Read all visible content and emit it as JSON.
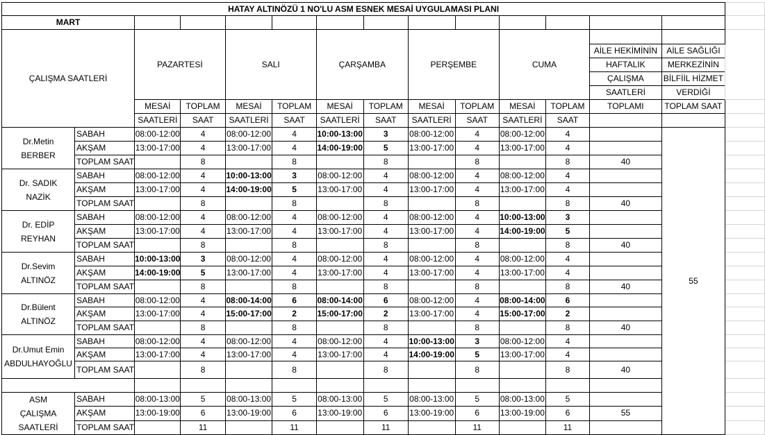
{
  "title": "HATAY ALTINÖZÜ 1 NO'LU ASM ESNEK MESAİ UYGULAMASI PLANI",
  "month": "MART",
  "row_header": "ÇALIŞMA SAATLERİ",
  "days": [
    "PAZARTESİ",
    "SALI",
    "ÇARŞAMBA",
    "PERŞEMBE",
    "CUMA"
  ],
  "sub_headers": {
    "mesai_1": "MESAİ",
    "mesai_2": "SAATLERİ",
    "toplam_1": "TOPLAM",
    "toplam_2": "SAAT"
  },
  "weekly_header": [
    "AİLE HEKİMİNİN",
    "HAFTALIK",
    "ÇALIŞMA",
    "SAATLERİ",
    "TOPLAMI"
  ],
  "asm_header": [
    "AİLE SAĞLIĞI",
    "MERKEZİNİN",
    "BİLFİİL HİZMET",
    "VERDİĞİ",
    "TOPLAM SAAT"
  ],
  "shift_labels": {
    "sabah": "SABAH",
    "aksam": "AKŞAM",
    "total": "TOPLAM SAAT"
  },
  "asm_total_hours": "55",
  "doctors": [
    {
      "name_lines": [
        "Dr.Metin",
        "BERBER"
      ],
      "weekly_total": "40",
      "sabah": [
        {
          "time": "08:00-12:00",
          "hours": "4",
          "bold": false
        },
        {
          "time": "08:00-12:00",
          "hours": "4",
          "bold": false
        },
        {
          "time": "10:00-13:00",
          "hours": "3",
          "bold": true
        },
        {
          "time": "08:00-12:00",
          "hours": "4",
          "bold": false
        },
        {
          "time": "08:00-12:00",
          "hours": "4",
          "bold": false
        }
      ],
      "aksam": [
        {
          "time": "13:00-17:00",
          "hours": "4",
          "bold": false
        },
        {
          "time": "13:00-17:00",
          "hours": "4",
          "bold": false
        },
        {
          "time": "14:00-19:00",
          "hours": "5",
          "bold": true
        },
        {
          "time": "13:00-17:00",
          "hours": "4",
          "bold": false
        },
        {
          "time": "13:00-17:00",
          "hours": "4",
          "bold": false
        }
      ],
      "totals": [
        "8",
        "8",
        "8",
        "8",
        "8"
      ]
    },
    {
      "name_lines": [
        "Dr. SADIK",
        "NAZİK"
      ],
      "weekly_total": "40",
      "sabah": [
        {
          "time": "08:00-12:00",
          "hours": "4",
          "bold": false
        },
        {
          "time": "10:00-13:00",
          "hours": "3",
          "bold": true
        },
        {
          "time": "08:00-12:00",
          "hours": "4",
          "bold": false
        },
        {
          "time": "08:00-12:00",
          "hours": "4",
          "bold": false
        },
        {
          "time": "08:00-12:00",
          "hours": "4",
          "bold": false
        }
      ],
      "aksam": [
        {
          "time": "13:00-17:00",
          "hours": "4",
          "bold": false
        },
        {
          "time": "14:00-19:00",
          "hours": "5",
          "bold": true
        },
        {
          "time": "13:00-17:00",
          "hours": "4",
          "bold": false
        },
        {
          "time": "13:00-17:00",
          "hours": "4",
          "bold": false
        },
        {
          "time": "13:00-17:00",
          "hours": "4",
          "bold": false
        }
      ],
      "totals": [
        "8",
        "8",
        "8",
        "8",
        "8"
      ]
    },
    {
      "name_lines": [
        "Dr. EDİP",
        "REYHAN"
      ],
      "weekly_total": "40",
      "sabah": [
        {
          "time": "08:00-12:00",
          "hours": "4",
          "bold": false
        },
        {
          "time": "08:00-12:00",
          "hours": "4",
          "bold": false
        },
        {
          "time": "08:00-12:00",
          "hours": "4",
          "bold": false
        },
        {
          "time": "08:00-12:00",
          "hours": "4",
          "bold": false
        },
        {
          "time": "10:00-13:00",
          "hours": "3",
          "bold": true
        }
      ],
      "aksam": [
        {
          "time": "13:00-17:00",
          "hours": "4",
          "bold": false
        },
        {
          "time": "13:00-17:00",
          "hours": "4",
          "bold": false
        },
        {
          "time": "13:00-17:00",
          "hours": "4",
          "bold": false
        },
        {
          "time": "13:00-17:00",
          "hours": "4",
          "bold": false
        },
        {
          "time": "14:00-19:00",
          "hours": "5",
          "bold": true
        }
      ],
      "totals": [
        "8",
        "8",
        "8",
        "8",
        "8"
      ]
    },
    {
      "name_lines": [
        "Dr.Sevim",
        "ALTINÖZ"
      ],
      "weekly_total": "40",
      "sabah": [
        {
          "time": "10:00-13:00",
          "hours": "3",
          "bold": true
        },
        {
          "time": "08:00-12:00",
          "hours": "4",
          "bold": false
        },
        {
          "time": "08:00-12:00",
          "hours": "4",
          "bold": false
        },
        {
          "time": "08:00-12:00",
          "hours": "4",
          "bold": false
        },
        {
          "time": "08:00-12:00",
          "hours": "4",
          "bold": false
        }
      ],
      "aksam": [
        {
          "time": "14:00-19:00",
          "hours": "5",
          "bold": true
        },
        {
          "time": "13:00-17:00",
          "hours": "4",
          "bold": false
        },
        {
          "time": "13:00-17:00",
          "hours": "4",
          "bold": false
        },
        {
          "time": "13:00-17:00",
          "hours": "4",
          "bold": false
        },
        {
          "time": "13:00-17:00",
          "hours": "4",
          "bold": false
        }
      ],
      "totals": [
        "8",
        "8",
        "8",
        "8",
        "8"
      ]
    },
    {
      "name_lines": [
        "Dr.Bülent",
        "ALTINÖZ"
      ],
      "weekly_total": "40",
      "sabah": [
        {
          "time": "08:00-12:00",
          "hours": "4",
          "bold": false
        },
        {
          "time": "08:00-14:00",
          "hours": "6",
          "bold": true
        },
        {
          "time": "08:00-14:00",
          "hours": "6",
          "bold": true
        },
        {
          "time": "08:00-12:00",
          "hours": "4",
          "bold": false
        },
        {
          "time": "08:00-14:00",
          "hours": "6",
          "bold": true
        }
      ],
      "aksam": [
        {
          "time": "13:00-17:00",
          "hours": "4",
          "bold": false
        },
        {
          "time": "15:00-17:00",
          "hours": "2",
          "bold": true
        },
        {
          "time": "15:00-17:00",
          "hours": "2",
          "bold": true
        },
        {
          "time": "13:00-17:00",
          "hours": "4",
          "bold": false
        },
        {
          "time": "15:00-17:00",
          "hours": "2",
          "bold": true
        }
      ],
      "totals": [
        "8",
        "8",
        "8",
        "8",
        "8"
      ]
    },
    {
      "name_lines": [
        "Dr.Umut Emin",
        "ABDULHAYOĞLU"
      ],
      "weekly_total": "40",
      "sabah": [
        {
          "time": "08:00-12:00",
          "hours": "4",
          "bold": false
        },
        {
          "time": "08:00-12:00",
          "hours": "4",
          "bold": false
        },
        {
          "time": "08:00-12:00",
          "hours": "4",
          "bold": false
        },
        {
          "time": "10:00-13:00",
          "hours": "3",
          "bold": true
        },
        {
          "time": "08:00-12:00",
          "hours": "4",
          "bold": false
        }
      ],
      "aksam": [
        {
          "time": "13:00-17:00",
          "hours": "4",
          "bold": false
        },
        {
          "time": "13:00-17:00",
          "hours": "4",
          "bold": false
        },
        {
          "time": "13:00-17:00",
          "hours": "4",
          "bold": false
        },
        {
          "time": "14:00-19:00",
          "hours": "5",
          "bold": true
        },
        {
          "time": "13:00-17:00",
          "hours": "4",
          "bold": false
        }
      ],
      "totals": [
        "8",
        "8",
        "8",
        "8",
        "8"
      ]
    }
  ],
  "asm": {
    "name_lines": [
      "ASM",
      "ÇALIŞMA",
      "SAATLERİ"
    ],
    "weekly_total": "55",
    "sabah": [
      {
        "time": "08:00-13:00",
        "hours": "5"
      },
      {
        "time": "08:00-13:00",
        "hours": "5"
      },
      {
        "time": "08:00-13:00",
        "hours": "5"
      },
      {
        "time": "08:00-13:00",
        "hours": "5"
      },
      {
        "time": "08:00-13:00",
        "hours": "5"
      }
    ],
    "aksam": [
      {
        "time": "13:00-19:00",
        "hours": "6"
      },
      {
        "time": "13:00-19:00",
        "hours": "6"
      },
      {
        "time": "13:00-19:00",
        "hours": "6"
      },
      {
        "time": "13:00-19:00",
        "hours": "6"
      },
      {
        "time": "13:00-19:00",
        "hours": "6"
      }
    ],
    "totals": [
      "11",
      "11",
      "11",
      "11",
      "11"
    ]
  }
}
